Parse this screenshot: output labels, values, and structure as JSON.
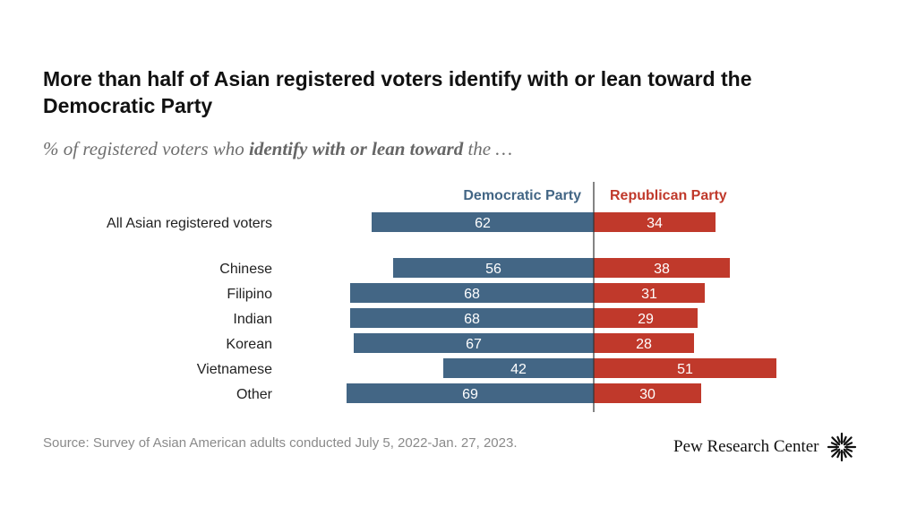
{
  "title": "More than half of Asian registered voters identify with or lean toward the Democratic Party",
  "subtitle": {
    "prefix": "% of registered voters who ",
    "emphasis": "identify with or lean toward",
    "suffix": " the …"
  },
  "source": "Source: Survey of Asian American adults conducted July 5, 2022-Jan. 27, 2023.",
  "logo_text": "Pew Research Center",
  "logo_icon": "pew-sunburst-icon",
  "colors": {
    "democratic": "#436685",
    "republican": "#c0392b",
    "text": "#222222",
    "axis": "#333333"
  },
  "chart_data": {
    "type": "bar",
    "orientation": "diverging-horizontal",
    "categories": [
      "All Asian registered voters",
      "Chinese",
      "Filipino",
      "Indian",
      "Korean",
      "Vietnamese",
      "Other"
    ],
    "series": [
      {
        "name": "Democratic Party",
        "values": [
          62,
          56,
          68,
          68,
          67,
          42,
          69
        ]
      },
      {
        "name": "Republican Party",
        "values": [
          34,
          38,
          31,
          29,
          28,
          51,
          30
        ]
      }
    ],
    "xlim": [
      0,
      100
    ],
    "grid": false,
    "legend": "top"
  }
}
